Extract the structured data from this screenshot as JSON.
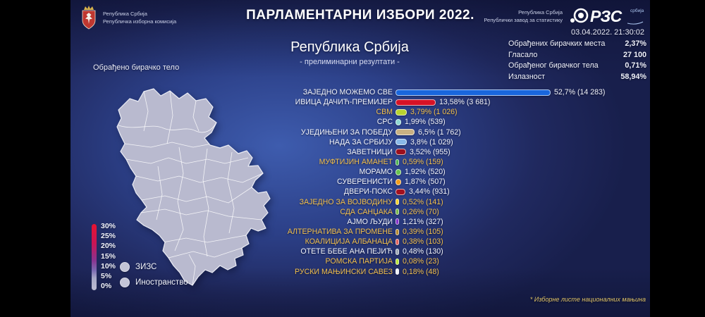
{
  "header": {
    "title": "ПАРЛАМЕНТАРНИ ИЗБОРИ 2022.",
    "rik": {
      "line1": "Република Србија",
      "line2": "Републичка изборна комисија"
    },
    "rzs": {
      "line1": "Република Србија",
      "line2": "Републички завод за статистику",
      "logo_text": "РЗС",
      "logo_sub": "србија"
    },
    "timestamp": "03.04.2022. 21:30:02"
  },
  "stats": [
    {
      "label": "Обрађених бирачких места",
      "value": "2,37%"
    },
    {
      "label": "Гласало",
      "value": "27 100"
    },
    {
      "label": "Обрађеног бирачког тела",
      "value": "0,71%"
    },
    {
      "label": "Излазност",
      "value": "58,94%"
    }
  ],
  "region": {
    "title": "Република Србија",
    "subtitle": "- прелиминарни резултати -"
  },
  "map_panel": {
    "label": "Обрађено бирачко тело",
    "legend_ticks": [
      "30%",
      "25%",
      "20%",
      "15%",
      "10%",
      "5%",
      "0%"
    ],
    "legend_items": [
      {
        "label": "ЗИЗС"
      },
      {
        "label": "Иностранство"
      }
    ],
    "gradient_stops": [
      "#e8132f 0%",
      "#c81556 30%",
      "#8a3390 55%",
      "#7c6ab2 70%",
      "#a8a8c6 82%",
      "#bcbcd2 100%"
    ],
    "map_fill": "#b9bacf"
  },
  "footnote": "* Изборне листе националних мањина",
  "chart_data": {
    "type": "bar",
    "orientation": "horizontal",
    "title": "Република Србија - прелиминарни резултати -",
    "value_unit": "% гласова (број гласова)",
    "xlim": [
      0,
      55
    ],
    "parties": [
      {
        "name": "ЗАЈЕДНО МОЖЕМО СВЕ",
        "pct": 52.7,
        "votes": 14283,
        "value": "52,7% (14 283)",
        "color": "#1966dd",
        "minority": false
      },
      {
        "name": "ИВИЦА ДАЧИЋ-ПРЕМИЈЕР",
        "pct": 13.58,
        "votes": 3681,
        "value": "13,58% (3 681)",
        "color": "#d61226",
        "minority": false
      },
      {
        "name": "СВМ",
        "pct": 3.79,
        "votes": 1026,
        "value": "3,79% (1 026)",
        "color": "#b8d32f",
        "minority": true
      },
      {
        "name": "СРС",
        "pct": 1.99,
        "votes": 539,
        "value": "1,99% (539)",
        "color": "#8fd8d2",
        "minority": false
      },
      {
        "name": "УЈЕДИЊЕНИ ЗА ПОБЕДУ",
        "pct": 6.5,
        "votes": 1762,
        "value": "6,5% (1 762)",
        "color": "#c9b183",
        "minority": false
      },
      {
        "name": "НАДА ЗА СРБИЈУ",
        "pct": 3.8,
        "votes": 1029,
        "value": "3,8% (1 029)",
        "color": "#8ab8e8",
        "minority": false
      },
      {
        "name": "ЗАВЕТНИЦИ",
        "pct": 3.52,
        "votes": 955,
        "value": "3,52% (955)",
        "color": "#9c0f1d",
        "minority": false
      },
      {
        "name": "МУФТИЈИН АМАНЕТ",
        "pct": 0.59,
        "votes": 159,
        "value": "0,59% (159)",
        "color": "#4db353",
        "minority": true
      },
      {
        "name": "МОРАМО",
        "pct": 1.92,
        "votes": 520,
        "value": "1,92% (520)",
        "color": "#69c24f",
        "minority": false
      },
      {
        "name": "СУВЕРЕНИСТИ",
        "pct": 1.87,
        "votes": 507,
        "value": "1,87% (507)",
        "color": "#f39d1b",
        "minority": false
      },
      {
        "name": "ДВЕРИ-ПОКС",
        "pct": 3.44,
        "votes": 931,
        "value": "3,44% (931)",
        "color": "#a31120",
        "minority": false
      },
      {
        "name": "ЗАЈЕДНО ЗА ВОЈВОДИНУ",
        "pct": 0.52,
        "votes": 141,
        "value": "0,52% (141)",
        "color": "#f2d12c",
        "minority": true
      },
      {
        "name": "СДА САНЏАКА",
        "pct": 0.26,
        "votes": 70,
        "value": "0,26% (70)",
        "color": "#7ab84b",
        "minority": true
      },
      {
        "name": "АЈМО ЉУДИ",
        "pct": 1.21,
        "votes": 327,
        "value": "1,21% (327)",
        "color": "#8633c9",
        "minority": false
      },
      {
        "name": "АЛТЕРНАТИВА ЗА ПРОМЕНЕ",
        "pct": 0.39,
        "votes": 105,
        "value": "0,39% (105)",
        "color": "#b6892f",
        "minority": true
      },
      {
        "name": "КОАЛИЦИЈА АЛБАНАЦА",
        "pct": 0.38,
        "votes": 103,
        "value": "0,38% (103)",
        "color": "#e4625c",
        "minority": true
      },
      {
        "name": "ОТЕТЕ БЕБЕ АНА ПЕЈИЋ",
        "pct": 0.48,
        "votes": 130,
        "value": "0,48% (130)",
        "color": "#9fa8b5",
        "minority": false
      },
      {
        "name": "РОМСКА ПАРТИЈА",
        "pct": 0.08,
        "votes": 23,
        "value": "0,08% (23)",
        "color": "#b8e338",
        "minority": true
      },
      {
        "name": "РУСКИ МАЊИНСКИ САВЕЗ",
        "pct": 0.18,
        "votes": 48,
        "value": "0,18% (48)",
        "color": "#eef1f7",
        "minority": true
      }
    ]
  }
}
